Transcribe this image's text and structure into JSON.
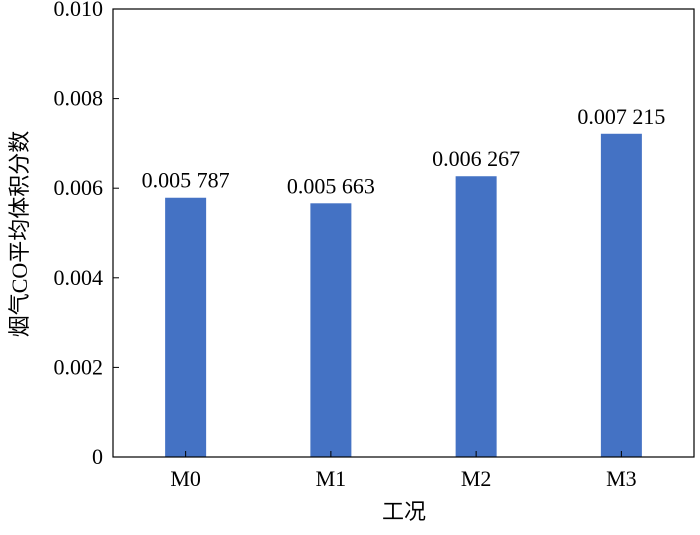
{
  "chart_data": {
    "type": "bar",
    "categories": [
      "M0",
      "M1",
      "M2",
      "M3"
    ],
    "values": [
      0.005787,
      0.005663,
      0.006267,
      0.007215
    ],
    "data_labels": [
      "0.005 787",
      "0.005 663",
      "0.006 267",
      "0.007 215"
    ],
    "xlabel": "工况",
    "ylabel": "烟气CO平均体积分数",
    "ylim": [
      0,
      0.01
    ],
    "yticks": [
      0,
      0.002,
      0.004,
      0.006,
      0.008,
      0.01
    ],
    "ytick_labels": [
      "0",
      "0.002",
      "0.004",
      "0.006",
      "0.008",
      "0.010"
    ],
    "grid": false,
    "bar_color": "#4472c4",
    "frame": "box"
  }
}
